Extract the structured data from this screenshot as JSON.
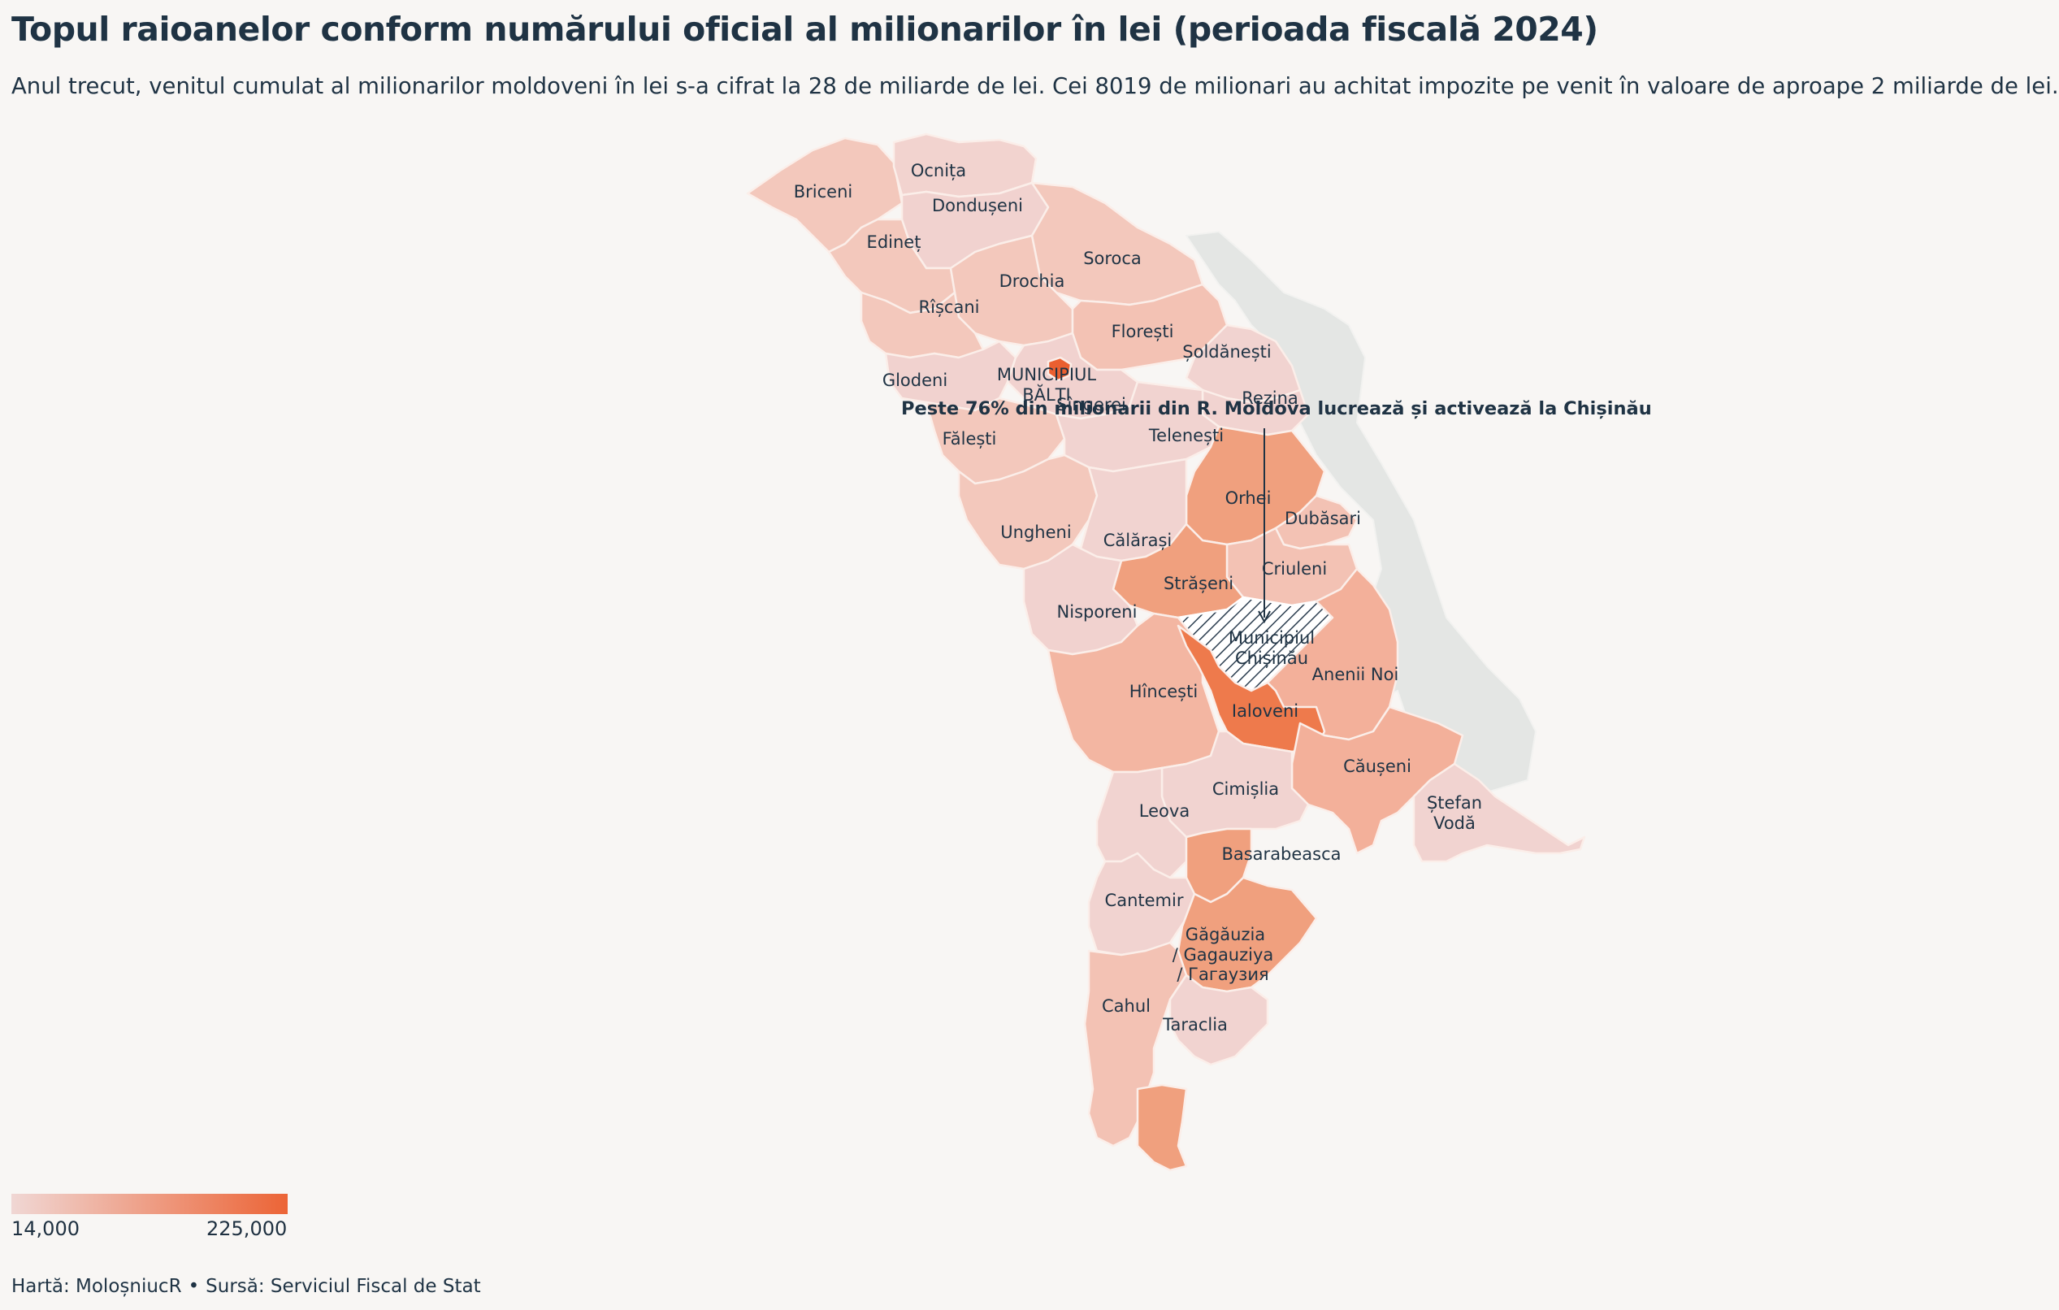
{
  "title": "Topul raioanelor conform numărului oficial al milionarilor în lei (perioada fiscală 2024)",
  "subtitle": "Anul trecut, venitul cumulat al milionarilor moldoveni în lei s-a cifrat la 28 de miliarde de lei. Cei 8019 de milionari au achitat impozite pe venit în valoare de aproape 2 miliarde de lei.",
  "annotation": "Peste 76% din milionarii din R. Moldova lucrează și activează la Chișinău",
  "legend": {
    "min_label": "14,000",
    "max_label": "225,000",
    "color_low": "#f0d7d4",
    "color_high": "#ec6436"
  },
  "footer": {
    "map_credit": "Hartă: MoloșniucR",
    "separator": "•",
    "source": "Sursă: Serviciul Fiscal de Stat"
  },
  "colors": {
    "background": "#f8f6f4",
    "transnistria": "#e4e6e4",
    "border": "#fbeee9",
    "label_text": "#1f3344",
    "chisinau_hatch": "#2c3e50"
  },
  "districts": [
    {
      "name": "Briceni"
    },
    {
      "name": "Ocnița"
    },
    {
      "name": "Dondușeni"
    },
    {
      "name": "Edineț"
    },
    {
      "name": "Drochia"
    },
    {
      "name": "Soroca"
    },
    {
      "name": "Rîșcani"
    },
    {
      "name": "Florești"
    },
    {
      "name": "Șoldănești"
    },
    {
      "name": "Glodeni"
    },
    {
      "name": "MUNICIPIUL BĂLȚI"
    },
    {
      "name": "Sîngerei"
    },
    {
      "name": "Rezina"
    },
    {
      "name": "Fălești"
    },
    {
      "name": "Telenești"
    },
    {
      "name": "Orhei"
    },
    {
      "name": "Dubăsari"
    },
    {
      "name": "Ungheni"
    },
    {
      "name": "Călărași"
    },
    {
      "name": "Criuleni"
    },
    {
      "name": "Strășeni"
    },
    {
      "name": "Nisporeni"
    },
    {
      "name": "Municipiul Chișinău"
    },
    {
      "name": "Anenii Noi"
    },
    {
      "name": "Hîncești"
    },
    {
      "name": "Ialoveni"
    },
    {
      "name": "Căușeni"
    },
    {
      "name": "Cimișlia"
    },
    {
      "name": "Ștefan Vodă"
    },
    {
      "name": "Leova"
    },
    {
      "name": "Basarabeasca"
    },
    {
      "name": "Cantemir"
    },
    {
      "name": "Găgăuzia / Gagauziya / Гагаузия"
    },
    {
      "name": "Cahul"
    },
    {
      "name": "Taraclia"
    }
  ]
}
